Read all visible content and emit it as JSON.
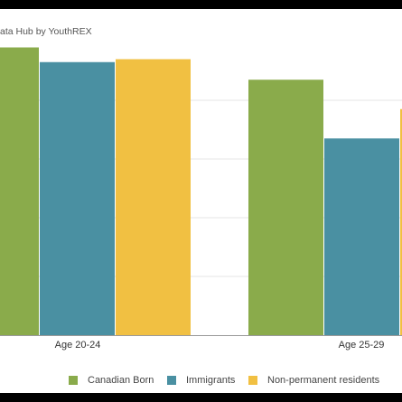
{
  "source_caption": "ata Hub by YouthREX",
  "colors": {
    "canadian_born": "#8aab4b",
    "immigrants": "#4a90a2",
    "non_permanent": "#f1c042",
    "grid": "#e6e6e6",
    "axis": "#9a9a9a"
  },
  "chart_data": {
    "type": "bar",
    "categories": [
      "Age 20-24",
      "Age 25-29"
    ],
    "series": [
      {
        "name": "Canadian Born",
        "values": [
          98,
          87
        ]
      },
      {
        "name": "Immigrants",
        "values": [
          93,
          67
        ]
      },
      {
        "name": "Non-permanent residents",
        "values": [
          94,
          77
        ]
      }
    ],
    "ylim": [
      0,
      100
    ],
    "grid": true,
    "legend_position": "bottom"
  },
  "legend": {
    "items": [
      "Canadian Born",
      "Immigrants",
      "Non-permanent residents"
    ]
  }
}
